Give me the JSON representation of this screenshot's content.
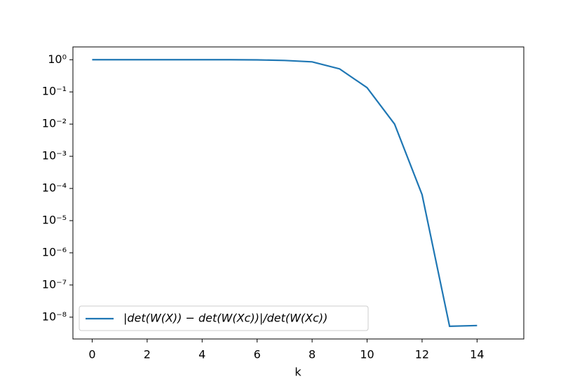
{
  "chart_data": {
    "type": "line",
    "x_label": "k",
    "x": [
      0,
      1,
      2,
      3,
      4,
      5,
      6,
      7,
      8,
      9,
      10,
      11,
      12,
      13,
      14
    ],
    "series": [
      {
        "name": "|det(W(X)) − det(W(Xc))|/det(W(Xc))",
        "color": "#1f77b4",
        "values": [
          1,
          1,
          1,
          1,
          1,
          1,
          0.99,
          0.95,
          0.86,
          0.52,
          0.135,
          0.01,
          6.4e-05,
          5.2e-09,
          5.5e-09
        ]
      }
    ],
    "xlim": [
      -0.7,
      15.7
    ],
    "xticks": [
      0,
      2,
      4,
      6,
      8,
      10,
      12,
      14
    ],
    "ylim": [
      2.1e-09,
      2.5
    ],
    "yscale": "log",
    "yticks": [
      {
        "value": 1,
        "label": "10⁰"
      },
      {
        "value": 0.1,
        "label": "10⁻¹"
      },
      {
        "value": 0.01,
        "label": "10⁻²"
      },
      {
        "value": 0.001,
        "label": "10⁻³"
      },
      {
        "value": 0.0001,
        "label": "10⁻⁴"
      },
      {
        "value": 1e-05,
        "label": "10⁻⁵"
      },
      {
        "value": 1e-06,
        "label": "10⁻⁶"
      },
      {
        "value": 1e-07,
        "label": "10⁻⁷"
      },
      {
        "value": 1e-08,
        "label": "10⁻⁸"
      }
    ],
    "legend": "lower left"
  }
}
